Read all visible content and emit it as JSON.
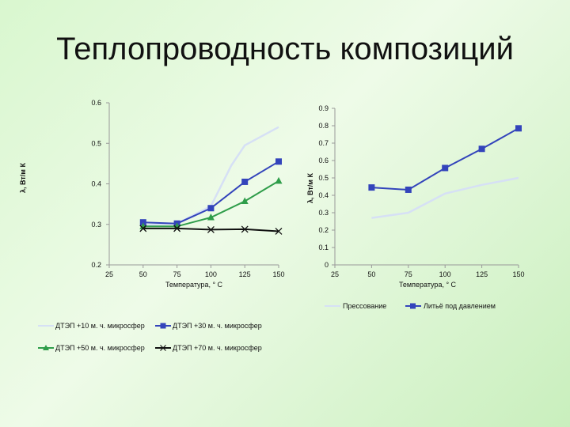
{
  "page": {
    "title": "Теплопроводность композиций"
  },
  "chart_data": [
    {
      "type": "line",
      "title": "",
      "xlabel": "Температура, ° С",
      "ylabel": "λ, Вт/м К",
      "x": [
        25,
        50,
        75,
        100,
        125,
        150
      ],
      "x_ticks": [
        "25",
        "50",
        "75",
        "100",
        "125",
        "150"
      ],
      "xlim": [
        25,
        150
      ],
      "ylim": [
        0.2,
        0.6
      ],
      "y_ticks": [
        "0.2",
        "0.3",
        "0.4",
        "0.5",
        "0.6"
      ],
      "y_tick_values": [
        0.2,
        0.3,
        0.4,
        0.5,
        0.6
      ],
      "legend_position": "bottom",
      "series": [
        {
          "name": "ДТЭП +10 м. ч. микросфер",
          "color": "#d6e0f5",
          "marker": "none",
          "x": [
            50,
            75,
            100,
            115,
            125,
            150
          ],
          "values": [
            0.298,
            0.302,
            0.345,
            0.445,
            0.495,
            0.54
          ]
        },
        {
          "name": "ДТЭП +30 м. ч. микросфер",
          "color": "#3344bb",
          "marker": "square",
          "x": [
            50,
            75,
            100,
            125,
            150
          ],
          "values": [
            0.305,
            0.302,
            0.34,
            0.405,
            0.455
          ]
        },
        {
          "name": "ДТЭП +50 м. ч. микросфер",
          "color": "#2f9d4a",
          "marker": "triangle",
          "x": [
            50,
            75,
            100,
            125,
            150
          ],
          "values": [
            0.295,
            0.295,
            0.317,
            0.357,
            0.407
          ]
        },
        {
          "name": "ДТЭП +70 м. ч. микросфер",
          "color": "#111111",
          "marker": "x",
          "x": [
            50,
            75,
            100,
            125,
            150
          ],
          "values": [
            0.29,
            0.29,
            0.287,
            0.288,
            0.283
          ]
        }
      ]
    },
    {
      "type": "line",
      "title": "",
      "xlabel": "Температура, ° С",
      "ylabel": "λ, Вт/м К",
      "x": [
        25,
        50,
        75,
        100,
        125,
        150
      ],
      "x_ticks": [
        "25",
        "50",
        "75",
        "100",
        "125",
        "150"
      ],
      "xlim": [
        25,
        150
      ],
      "ylim": [
        0,
        0.9
      ],
      "y_ticks": [
        "0",
        "0.1",
        "0.2",
        "0.3",
        "0.4",
        "0.5",
        "0.6",
        "0.7",
        "0.8",
        "0.9"
      ],
      "y_tick_values": [
        0,
        0.1,
        0.2,
        0.3,
        0.4,
        0.5,
        0.6,
        0.7,
        0.8,
        0.9
      ],
      "legend_position": "bottom",
      "series": [
        {
          "name": "Прессование",
          "color": "#d6e0f5",
          "marker": "none",
          "x": [
            50,
            75,
            100,
            125,
            150
          ],
          "values": [
            0.27,
            0.3,
            0.41,
            0.46,
            0.5
          ]
        },
        {
          "name": "Литьё под давлением",
          "color": "#3344bb",
          "marker": "square",
          "x": [
            50,
            75,
            100,
            125,
            150
          ],
          "values": [
            0.445,
            0.432,
            0.557,
            0.667,
            0.785
          ]
        }
      ]
    }
  ]
}
